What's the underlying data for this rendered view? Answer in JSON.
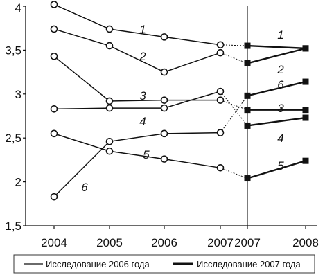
{
  "chart_data": {
    "type": "line",
    "title": "",
    "xlabel": "",
    "ylabel": "",
    "ylim": [
      1.5,
      4
    ],
    "y_ticks": [
      "1,5",
      "2",
      "2,5",
      "3",
      "3,5",
      "4"
    ],
    "y_tick_values": [
      1.5,
      2,
      2.5,
      3,
      3.5,
      4
    ],
    "categories": [
      "2004",
      "2005",
      "2006",
      "2007",
      "2007",
      "2008"
    ],
    "grid": false,
    "legend_position": "bottom",
    "legend": {
      "study_2006": "Исследование 2006 года",
      "study_2007": "Исследование 2007 года"
    },
    "series_2006": [
      {
        "name": "1",
        "values": [
          4.02,
          3.74,
          3.65,
          3.56
        ]
      },
      {
        "name": "2",
        "values": [
          3.74,
          3.55,
          3.25,
          3.47
        ]
      },
      {
        "name": "3",
        "values": [
          3.43,
          2.92,
          2.93,
          2.93
        ]
      },
      {
        "name": "4",
        "values": [
          2.83,
          2.84,
          2.84,
          3.03
        ]
      },
      {
        "name": "5",
        "values": [
          2.55,
          2.35,
          2.26,
          2.16
        ]
      },
      {
        "name": "6",
        "values": [
          1.83,
          2.46,
          2.55,
          2.56
        ]
      }
    ],
    "series_2007": [
      {
        "name": "1",
        "values": [
          3.55,
          3.52
        ]
      },
      {
        "name": "2",
        "values": [
          3.35,
          3.52
        ]
      },
      {
        "name": "3",
        "values": [
          2.82,
          2.82
        ]
      },
      {
        "name": "4",
        "values": [
          2.64,
          2.73
        ]
      },
      {
        "name": "5",
        "values": [
          2.04,
          2.24
        ]
      },
      {
        "name": "6",
        "values": [
          2.98,
          3.14
        ]
      }
    ]
  }
}
